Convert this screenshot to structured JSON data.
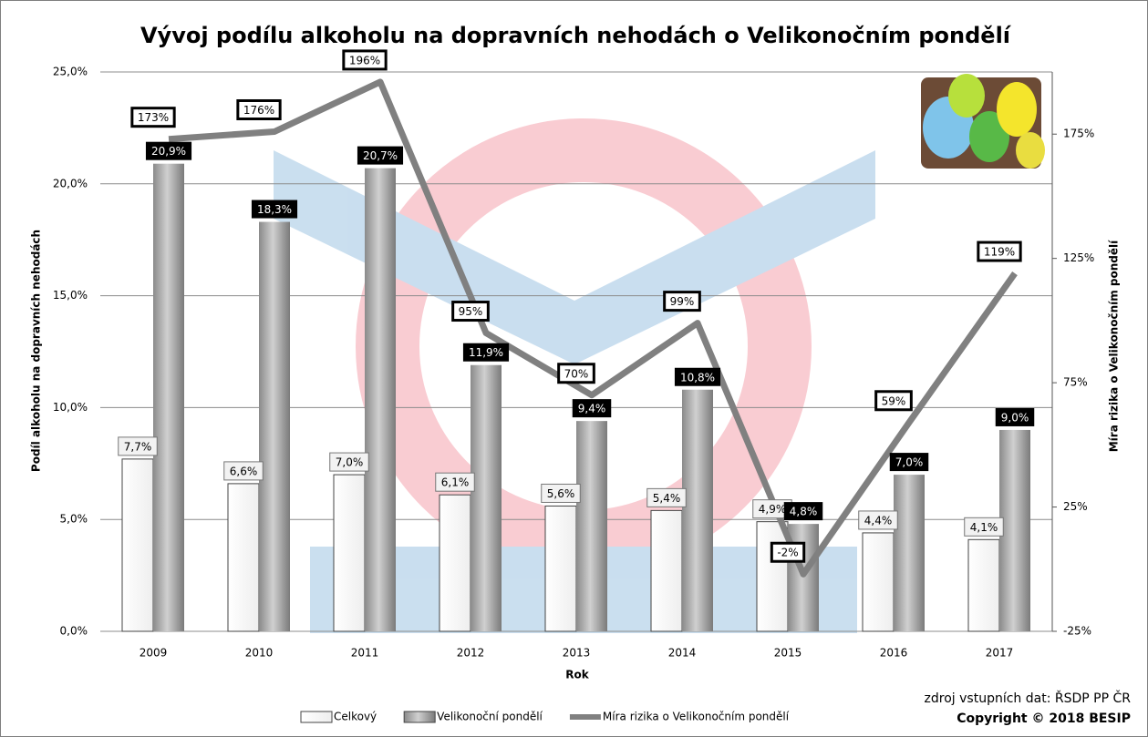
{
  "chart_data": {
    "type": "bar",
    "title": "Vývoj podílu alkoholu na dopravních nehodách o Velikonočním pondělí",
    "x_label": "Rok",
    "y_label": "Podíl alkoholu na dopravních nehodách",
    "y2_label": "Míra rizika o Velikonočním pondělí",
    "source": "zdroj vstupních dat: ŘSDP PP ČR",
    "copyright": "Copyright © 2018 BESIP",
    "categories": [
      "2009",
      "2010",
      "2011",
      "2012",
      "2013",
      "2014",
      "2015",
      "2016",
      "2017"
    ],
    "series": [
      {
        "name": "Celkový",
        "type": "bar",
        "color": "#ffffff",
        "values": [
          7.7,
          6.6,
          7.0,
          6.1,
          5.6,
          5.4,
          4.9,
          4.4,
          4.1
        ],
        "value_labels": [
          "7,7%",
          "6,6%",
          "7,0%",
          "6,1%",
          "5,6%",
          "5,4%",
          "4,9%",
          "4,4%",
          "4,1%"
        ]
      },
      {
        "name": "Velikonoční pondělí",
        "type": "bar",
        "color": "#a6a6a6",
        "values": [
          20.9,
          18.3,
          20.7,
          11.9,
          9.4,
          10.8,
          4.8,
          7.0,
          9.0
        ],
        "value_labels": [
          "20,9%",
          "18,3%",
          "20,7%",
          "11,9%",
          "9,4%",
          "10,8%",
          "4,8%",
          "7,0%",
          "9,0%"
        ]
      },
      {
        "name": "Míra rizika o Velikonočním pondělí",
        "type": "line",
        "axis": "y2",
        "color": "#808080",
        "values": [
          173,
          176,
          196,
          95,
          70,
          99,
          -2,
          59,
          119
        ],
        "value_labels": [
          "173%",
          "176%",
          "196%",
          "95%",
          "70%",
          "99%",
          "-2%",
          "59%",
          "119%"
        ]
      }
    ],
    "ylim": [
      0,
      25
    ],
    "yticks": [
      {
        "value": 0,
        "label": "0,0%"
      },
      {
        "value": 5,
        "label": "5,0%"
      },
      {
        "value": 10,
        "label": "10,0%"
      },
      {
        "value": 15,
        "label": "15,0%"
      },
      {
        "value": 20,
        "label": "20,0%"
      },
      {
        "value": 25,
        "label": "25,0%"
      }
    ],
    "y2lim": [
      -25,
      200
    ],
    "y2ticks": [
      {
        "value": -25,
        "label": "-25%"
      },
      {
        "value": 25,
        "label": "25%"
      },
      {
        "value": 75,
        "label": "75%"
      },
      {
        "value": 125,
        "label": "125%"
      },
      {
        "value": 175,
        "label": "175%"
      }
    ],
    "grid": true
  }
}
